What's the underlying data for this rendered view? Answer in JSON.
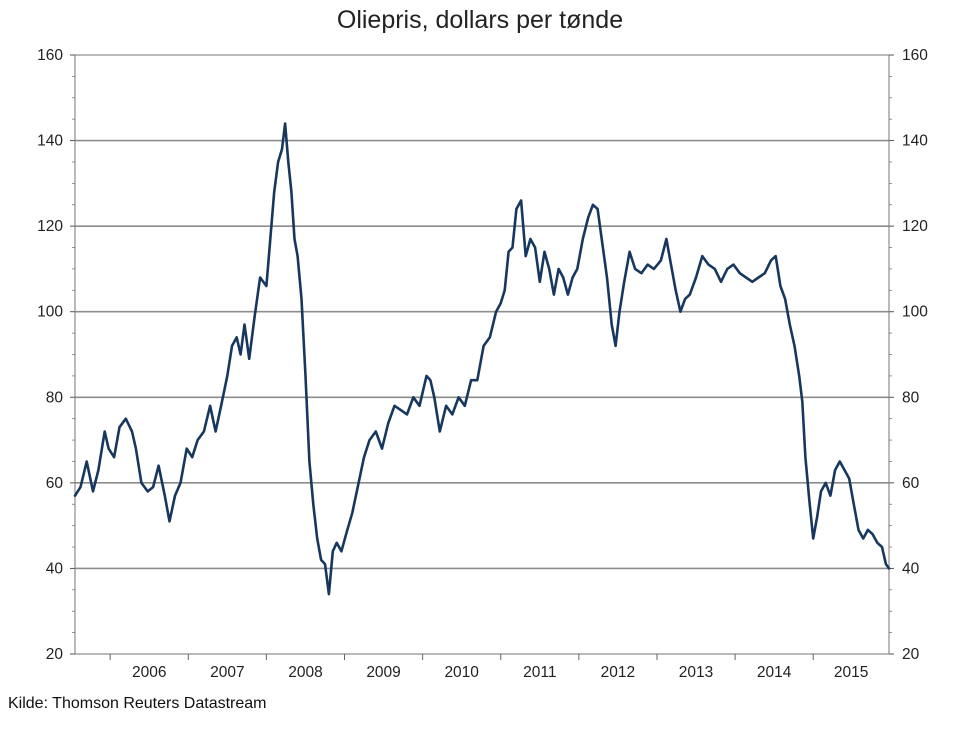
{
  "chart_data": {
    "type": "line",
    "title": "Oliepris, dollars per tønde",
    "xlabel": "",
    "ylabel": "",
    "ylim": [
      20,
      160
    ],
    "yticks": [
      20,
      40,
      60,
      80,
      100,
      120,
      140,
      160
    ],
    "y_tick_labels": [
      "20",
      "40",
      "60",
      "80",
      "100",
      "120",
      "140",
      "160"
    ],
    "xlim": [
      2005.55,
      2015.97
    ],
    "x_categories": [
      "2006",
      "2007",
      "2008",
      "2009",
      "2010",
      "2011",
      "2012",
      "2013",
      "2014",
      "2015"
    ],
    "grid": true,
    "line_color": "#17375e",
    "series": [
      {
        "name": "Oliepris",
        "points": [
          [
            2005.55,
            57
          ],
          [
            2005.62,
            59
          ],
          [
            2005.7,
            65
          ],
          [
            2005.78,
            58
          ],
          [
            2005.85,
            63
          ],
          [
            2005.93,
            72
          ],
          [
            2005.98,
            68
          ],
          [
            2006.05,
            66
          ],
          [
            2006.12,
            73
          ],
          [
            2006.2,
            75
          ],
          [
            2006.28,
            72
          ],
          [
            2006.33,
            68
          ],
          [
            2006.4,
            60
          ],
          [
            2006.48,
            58
          ],
          [
            2006.55,
            59
          ],
          [
            2006.62,
            64
          ],
          [
            2006.7,
            57
          ],
          [
            2006.76,
            51
          ],
          [
            2006.83,
            57
          ],
          [
            2006.9,
            60
          ],
          [
            2006.98,
            68
          ],
          [
            2007.05,
            66
          ],
          [
            2007.12,
            70
          ],
          [
            2007.2,
            72
          ],
          [
            2007.28,
            78
          ],
          [
            2007.35,
            72
          ],
          [
            2007.42,
            78
          ],
          [
            2007.5,
            85
          ],
          [
            2007.56,
            92
          ],
          [
            2007.62,
            94
          ],
          [
            2007.67,
            90
          ],
          [
            2007.72,
            97
          ],
          [
            2007.78,
            89
          ],
          [
            2007.85,
            99
          ],
          [
            2007.92,
            108
          ],
          [
            2008.0,
            106
          ],
          [
            2008.05,
            117
          ],
          [
            2008.1,
            128
          ],
          [
            2008.15,
            135
          ],
          [
            2008.2,
            138
          ],
          [
            2008.24,
            144
          ],
          [
            2008.28,
            135
          ],
          [
            2008.32,
            128
          ],
          [
            2008.36,
            117
          ],
          [
            2008.4,
            113
          ],
          [
            2008.45,
            103
          ],
          [
            2008.5,
            85
          ],
          [
            2008.55,
            65
          ],
          [
            2008.6,
            55
          ],
          [
            2008.65,
            47
          ],
          [
            2008.7,
            42
          ],
          [
            2008.75,
            41
          ],
          [
            2008.8,
            34
          ],
          [
            2008.85,
            44
          ],
          [
            2008.9,
            46
          ],
          [
            2008.96,
            44
          ],
          [
            2009.02,
            48
          ],
          [
            2009.1,
            53
          ],
          [
            2009.18,
            60
          ],
          [
            2009.25,
            66
          ],
          [
            2009.32,
            70
          ],
          [
            2009.4,
            72
          ],
          [
            2009.48,
            68
          ],
          [
            2009.56,
            74
          ],
          [
            2009.64,
            78
          ],
          [
            2009.72,
            77
          ],
          [
            2009.8,
            76
          ],
          [
            2009.88,
            80
          ],
          [
            2009.96,
            78
          ],
          [
            2010.05,
            85
          ],
          [
            2010.1,
            84
          ],
          [
            2010.15,
            80
          ],
          [
            2010.22,
            72
          ],
          [
            2010.3,
            78
          ],
          [
            2010.38,
            76
          ],
          [
            2010.46,
            80
          ],
          [
            2010.54,
            78
          ],
          [
            2010.62,
            84
          ],
          [
            2010.7,
            84
          ],
          [
            2010.78,
            92
          ],
          [
            2010.86,
            94
          ],
          [
            2010.94,
            100
          ],
          [
            2011.0,
            102
          ],
          [
            2011.05,
            105
          ],
          [
            2011.1,
            114
          ],
          [
            2011.15,
            115
          ],
          [
            2011.2,
            124
          ],
          [
            2011.26,
            126
          ],
          [
            2011.32,
            113
          ],
          [
            2011.38,
            117
          ],
          [
            2011.44,
            115
          ],
          [
            2011.5,
            107
          ],
          [
            2011.56,
            114
          ],
          [
            2011.62,
            110
          ],
          [
            2011.68,
            104
          ],
          [
            2011.74,
            110
          ],
          [
            2011.8,
            108
          ],
          [
            2011.86,
            104
          ],
          [
            2011.92,
            108
          ],
          [
            2011.98,
            110
          ],
          [
            2012.05,
            117
          ],
          [
            2012.12,
            122
          ],
          [
            2012.18,
            125
          ],
          [
            2012.24,
            124
          ],
          [
            2012.3,
            116
          ],
          [
            2012.36,
            108
          ],
          [
            2012.42,
            97
          ],
          [
            2012.47,
            92
          ],
          [
            2012.52,
            100
          ],
          [
            2012.58,
            107
          ],
          [
            2012.65,
            114
          ],
          [
            2012.72,
            110
          ],
          [
            2012.8,
            109
          ],
          [
            2012.88,
            111
          ],
          [
            2012.96,
            110
          ],
          [
            2013.05,
            112
          ],
          [
            2013.12,
            117
          ],
          [
            2013.18,
            111
          ],
          [
            2013.24,
            105
          ],
          [
            2013.3,
            100
          ],
          [
            2013.36,
            103
          ],
          [
            2013.42,
            104
          ],
          [
            2013.5,
            108
          ],
          [
            2013.58,
            113
          ],
          [
            2013.66,
            111
          ],
          [
            2013.74,
            110
          ],
          [
            2013.82,
            107
          ],
          [
            2013.9,
            110
          ],
          [
            2013.98,
            111
          ],
          [
            2014.06,
            109
          ],
          [
            2014.14,
            108
          ],
          [
            2014.22,
            107
          ],
          [
            2014.3,
            108
          ],
          [
            2014.38,
            109
          ],
          [
            2014.46,
            112
          ],
          [
            2014.52,
            113
          ],
          [
            2014.58,
            106
          ],
          [
            2014.64,
            103
          ],
          [
            2014.7,
            97
          ],
          [
            2014.76,
            92
          ],
          [
            2014.82,
            85
          ],
          [
            2014.86,
            79
          ],
          [
            2014.9,
            66
          ],
          [
            2014.95,
            56
          ],
          [
            2015.0,
            47
          ],
          [
            2015.05,
            52
          ],
          [
            2015.1,
            58
          ],
          [
            2015.16,
            60
          ],
          [
            2015.22,
            57
          ],
          [
            2015.28,
            63
          ],
          [
            2015.34,
            65
          ],
          [
            2015.4,
            63
          ],
          [
            2015.46,
            61
          ],
          [
            2015.52,
            55
          ],
          [
            2015.58,
            49
          ],
          [
            2015.64,
            47
          ],
          [
            2015.7,
            49
          ],
          [
            2015.76,
            48
          ],
          [
            2015.82,
            46
          ],
          [
            2015.88,
            45
          ],
          [
            2015.93,
            41
          ],
          [
            2015.97,
            40
          ]
        ]
      }
    ]
  },
  "footer": {
    "source": "Kilde: Thomson Reuters Datastream"
  }
}
